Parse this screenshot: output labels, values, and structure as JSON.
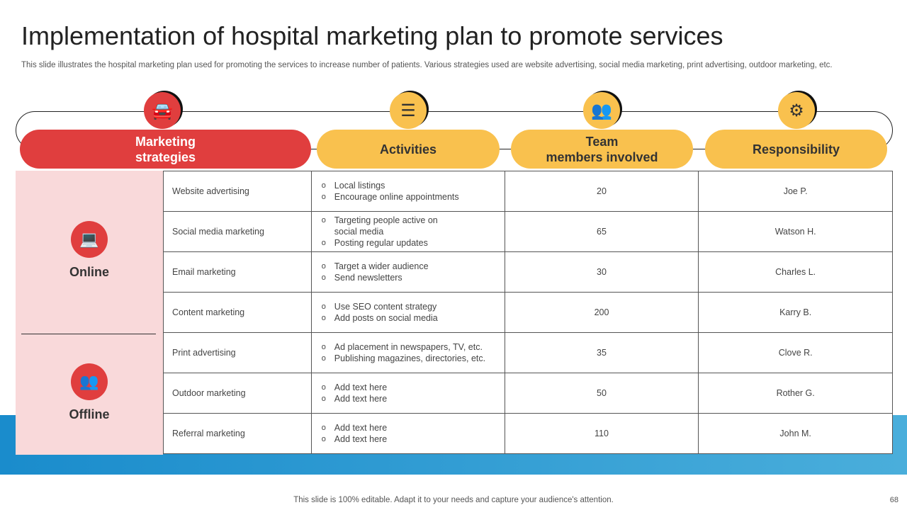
{
  "title": "Implementation of hospital marketing plan to promote services",
  "subtitle": "This slide illustrates the hospital marketing plan used for promoting the services to increase number of patients. Various strategies used are website advertising, social media marketing, print advertising, outdoor marketing, etc.",
  "headers": [
    {
      "label1": "Marketing",
      "label2": "strategies",
      "icon": "car-gear-icon",
      "color": "#e03e3e"
    },
    {
      "label1": "Activities",
      "icon": "checklist-icon",
      "color": "#f9c14e"
    },
    {
      "label1": "Team",
      "label2": "members involved",
      "icon": "team-icon",
      "color": "#f9c14e"
    },
    {
      "label1": "Responsibility",
      "icon": "hand-gear-icon",
      "color": "#f9c14e"
    }
  ],
  "segments": [
    {
      "label": "Online",
      "icon": "laptop-user-icon"
    },
    {
      "label": "Offline",
      "icon": "meeting-icon"
    }
  ],
  "rows": [
    {
      "strategy": "Website advertising",
      "activities": [
        "Local listings",
        "Encourage online appointments"
      ],
      "members": "20",
      "responsible": "Joe P."
    },
    {
      "strategy": "Social media marketing",
      "activities": [
        "Targeting people active on social media",
        "Posting regular updates"
      ],
      "members": "65",
      "responsible": "Watson H."
    },
    {
      "strategy": "Email marketing",
      "activities": [
        "Target a wider audience",
        "Send newsletters"
      ],
      "members": "30",
      "responsible": "Charles L."
    },
    {
      "strategy": "Content marketing",
      "activities": [
        "Use SEO content strategy",
        "Add posts on social media"
      ],
      "members": "200",
      "responsible": "Karry B."
    },
    {
      "strategy": "Print advertising",
      "activities": [
        "Ad placement in newspapers, TV, etc.",
        "Publishing magazines, directories, etc."
      ],
      "members": "35",
      "responsible": "Clove R."
    },
    {
      "strategy": "Outdoor marketing",
      "activities": [
        "Add text here",
        "Add text here"
      ],
      "members": "50",
      "responsible": "Rother G."
    },
    {
      "strategy": "Referral marketing",
      "activities": [
        "Add text here",
        "Add text here"
      ],
      "members": "110",
      "responsible": "John M."
    }
  ],
  "footer": "This slide is 100% editable. Adapt it to your needs and capture your audience's attention.",
  "page_number": "68"
}
